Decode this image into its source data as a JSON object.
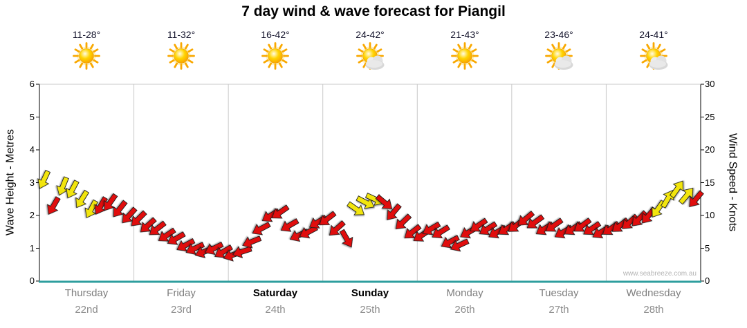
{
  "title": "7 day wind & wave forecast for Piangil",
  "watermark": "www.seabreeze.com.au",
  "axes": {
    "left": {
      "label": "Wave Height - Metres",
      "ticks": [
        "6",
        "5",
        "4",
        "3",
        "2",
        "1",
        "0"
      ]
    },
    "right": {
      "label": "Wind Speed - Knots",
      "ticks": [
        "30",
        "25",
        "20",
        "15",
        "10",
        "5",
        "0"
      ]
    }
  },
  "days": [
    {
      "name": "Thursday",
      "date": "22nd",
      "temp": "11-28°",
      "icon": "sun",
      "bold": false
    },
    {
      "name": "Friday",
      "date": "23rd",
      "temp": "11-32°",
      "icon": "sun",
      "bold": false
    },
    {
      "name": "Saturday",
      "date": "24th",
      "temp": "16-42°",
      "icon": "sun",
      "bold": true
    },
    {
      "name": "Sunday",
      "date": "25th",
      "temp": "24-42°",
      "icon": "sun-cloud",
      "bold": true
    },
    {
      "name": "Monday",
      "date": "26th",
      "temp": "21-43°",
      "icon": "sun",
      "bold": false
    },
    {
      "name": "Tuesday",
      "date": "27th",
      "temp": "23-46°",
      "icon": "sun-cloud",
      "bold": false
    },
    {
      "name": "Wednesday",
      "date": "28th",
      "temp": "24-41°",
      "icon": "sun-cloud",
      "bold": false
    }
  ],
  "colors": {
    "arrow_red": "#e01010",
    "arrow_yellow": "#f2e50e",
    "axis_bottom": "#2e9e9e",
    "axis_side": "#000000",
    "grid": "#c8c8c8",
    "weekday_label": "#7d7d7d",
    "weekend_label": "#000000",
    "watermark": "#b4b4b4"
  },
  "chart_data": {
    "type": "wind-arrows",
    "title": "7 day wind & wave forecast for Piangil",
    "categories": [
      "Thursday 22nd",
      "Friday 23rd",
      "Saturday 24th",
      "Sunday 25th",
      "Monday 26th",
      "Tuesday 27th",
      "Wednesday 28th"
    ],
    "y_left": {
      "label": "Wave Height - Metres",
      "min": 0,
      "max": 6
    },
    "y_right": {
      "label": "Wind Speed - Knots",
      "min": 0,
      "max": 30
    },
    "points_per_day": 10,
    "knots": [
      15.5,
      11.5,
      14.5,
      14,
      12.5,
      11,
      11.5,
      12,
      11,
      10,
      9.5,
      8.5,
      8,
      7,
      6.5,
      5.5,
      5,
      4.5,
      5,
      4.5,
      4,
      4.5,
      6,
      8,
      10,
      10.5,
      8.5,
      7,
      7.5,
      9,
      9.5,
      8,
      6.5,
      11,
      12,
      12.5,
      12,
      10.5,
      9,
      7.5,
      7,
      8,
      7.5,
      6,
      5.5,
      7.5,
      8.5,
      8,
      7.5,
      8,
      8.5,
      9.5,
      9,
      8,
      8.5,
      7.5,
      8,
      8.5,
      8,
      7.5,
      8,
      8.5,
      9,
      9.5,
      10,
      11,
      12.5,
      14,
      13,
      12.5
    ],
    "dirs_deg": [
      115,
      120,
      112,
      118,
      122,
      118,
      120,
      125,
      128,
      132,
      135,
      138,
      142,
      146,
      150,
      152,
      155,
      158,
      154,
      150,
      160,
      162,
      158,
      152,
      148,
      145,
      150,
      155,
      152,
      148,
      142,
      138,
      60,
      35,
      28,
      25,
      40,
      130,
      136,
      142,
      146,
      150,
      148,
      152,
      155,
      150,
      146,
      148,
      150,
      146,
      142,
      140,
      144,
      148,
      145,
      150,
      147,
      144,
      146,
      149,
      145,
      142,
      138,
      134,
      130,
      125,
      300,
      305,
      310,
      130
    ],
    "arrow_colors": [
      "Y",
      "R",
      "Y",
      "Y",
      "Y",
      "Y",
      "R",
      "R",
      "R",
      "R",
      "R",
      "R",
      "R",
      "R",
      "R",
      "R",
      "R",
      "R",
      "R",
      "R",
      "R",
      "R",
      "R",
      "R",
      "R",
      "R",
      "R",
      "R",
      "R",
      "R",
      "R",
      "R",
      "R",
      "Y",
      "Y",
      "Y",
      "R",
      "R",
      "R",
      "R",
      "R",
      "R",
      "R",
      "R",
      "R",
      "R",
      "R",
      "R",
      "R",
      "R",
      "R",
      "R",
      "R",
      "R",
      "R",
      "R",
      "R",
      "R",
      "R",
      "R",
      "R",
      "R",
      "R",
      "R",
      "R",
      "Y",
      "Y",
      "Y",
      "Y",
      "R"
    ],
    "color_map": {
      "R": "#e01010",
      "Y": "#f2e50e"
    }
  }
}
